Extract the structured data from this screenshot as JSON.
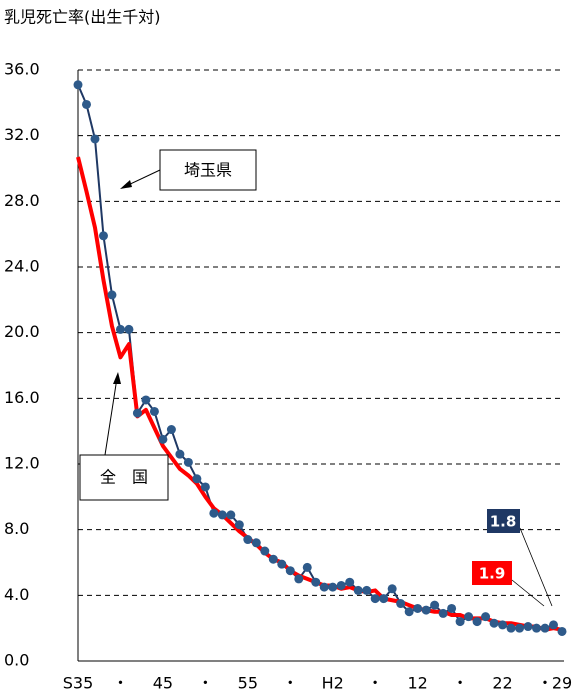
{
  "chart_data": {
    "type": "line",
    "y_label": "乳児死亡率(出生千対)",
    "categories": [
      "S35",
      null,
      null,
      null,
      null,
      "・",
      null,
      null,
      null,
      null,
      "45",
      null,
      null,
      null,
      null,
      "・",
      null,
      null,
      null,
      null,
      "55",
      null,
      null,
      null,
      null,
      "・",
      null,
      null,
      null,
      null,
      "H2",
      null,
      null,
      null,
      null,
      "・",
      null,
      null,
      null,
      null,
      "12",
      null,
      null,
      null,
      null,
      "・",
      null,
      null,
      null,
      null,
      "22",
      null,
      null,
      null,
      null,
      "・",
      null,
      "29"
    ],
    "series": [
      {
        "name": "埼玉県",
        "color": "#1f3864",
        "marker_color": "#2e5a8a",
        "values": [
          35.1,
          33.9,
          31.8,
          25.9,
          22.3,
          20.2,
          20.2,
          15.1,
          15.9,
          15.2,
          13.5,
          14.1,
          12.6,
          12.1,
          11.1,
          10.6,
          9.0,
          8.9,
          8.9,
          8.3,
          7.4,
          7.2,
          6.7,
          6.2,
          5.9,
          5.5,
          5.0,
          5.7,
          4.8,
          4.5,
          4.5,
          4.6,
          4.8,
          4.3,
          4.3,
          3.8,
          3.8,
          4.4,
          3.5,
          3.0,
          3.2,
          3.1,
          3.4,
          2.9,
          3.2,
          2.4,
          2.7,
          2.4,
          2.7,
          2.3,
          2.2,
          2.0,
          2.0,
          2.1,
          2.0,
          2.0,
          2.2,
          1.8
        ]
      },
      {
        "name": "全　国",
        "color": "#ff0000",
        "values": [
          30.7,
          28.6,
          26.4,
          23.2,
          20.4,
          18.5,
          19.3,
          14.9,
          15.3,
          14.2,
          13.1,
          12.4,
          11.7,
          11.3,
          10.8,
          10.0,
          9.3,
          8.9,
          8.4,
          7.9,
          7.5,
          7.1,
          6.6,
          6.2,
          6.0,
          5.5,
          5.2,
          5.0,
          4.8,
          4.6,
          4.6,
          4.4,
          4.5,
          4.3,
          4.2,
          4.3,
          3.8,
          3.7,
          3.6,
          3.4,
          3.2,
          3.1,
          3.0,
          3.0,
          2.8,
          2.8,
          2.6,
          2.6,
          2.6,
          2.4,
          2.3,
          2.3,
          2.2,
          2.1,
          2.1,
          1.9,
          2.0,
          1.9
        ]
      }
    ],
    "ylim": [
      0,
      36
    ],
    "yticks": [
      {
        "value": 0,
        "label": "0.0"
      },
      {
        "value": 4,
        "label": "4.0"
      },
      {
        "value": 8,
        "label": "8.0"
      },
      {
        "value": 12,
        "label": "12.0"
      },
      {
        "value": 16,
        "label": "16.0"
      },
      {
        "value": 20,
        "label": "20.0"
      },
      {
        "value": 24,
        "label": "24.0"
      },
      {
        "value": 28,
        "label": "28.0"
      },
      {
        "value": 32,
        "label": "32.0"
      },
      {
        "value": 36,
        "label": "36.0"
      }
    ],
    "grid": true
  }
}
